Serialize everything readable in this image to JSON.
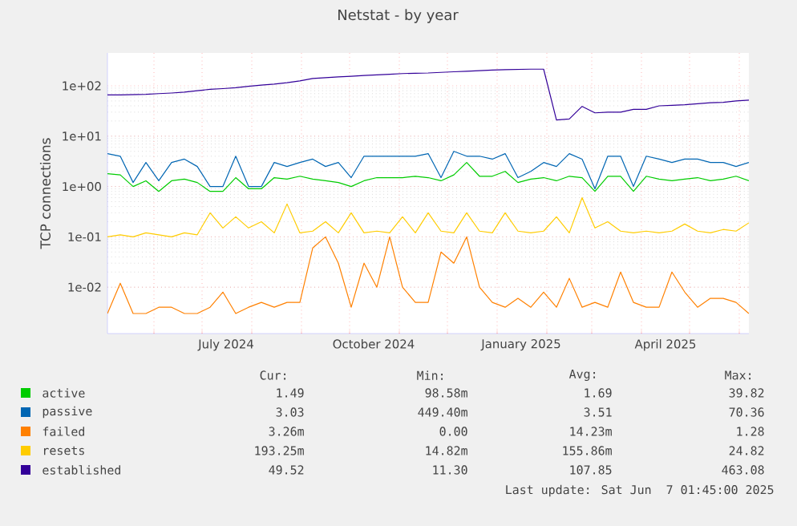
{
  "chart_data": {
    "type": "line",
    "title": "Netstat - by year",
    "ylabel": "TCP connections",
    "log": "y",
    "grid": true,
    "legend": "bottom",
    "line_style": "solid",
    "marker": "none",
    "xlim": [
      "2024-05-03",
      "2025-06-07"
    ],
    "xticks": [
      {
        "value": "2024-06-01",
        "label": null
      },
      {
        "value": "2024-07-01",
        "label": null
      },
      {
        "value": "2024-07-16",
        "label": "July 2024"
      },
      {
        "value": "2024-08-01",
        "label": null
      },
      {
        "value": "2024-09-01",
        "label": null
      },
      {
        "value": "2024-10-01",
        "label": null
      },
      {
        "value": "2024-10-16",
        "label": "October 2024"
      },
      {
        "value": "2024-11-01",
        "label": null
      },
      {
        "value": "2024-12-01",
        "label": null
      },
      {
        "value": "2025-01-01",
        "label": null
      },
      {
        "value": "2025-01-16",
        "label": "January 2025"
      },
      {
        "value": "2025-02-01",
        "label": null
      },
      {
        "value": "2025-03-01",
        "label": null
      },
      {
        "value": "2025-04-01",
        "label": null
      },
      {
        "value": "2025-04-16",
        "label": "April 2025"
      },
      {
        "value": "2025-05-01",
        "label": null
      },
      {
        "value": "2025-06-01",
        "label": null
      }
    ],
    "ylim": [
      0.0012,
      450
    ],
    "yticks": [
      {
        "value": 0.01,
        "label": "1e-02"
      },
      {
        "value": 0.1,
        "label": "1e-01"
      },
      {
        "value": 1,
        "label": "1e+00"
      },
      {
        "value": 10,
        "label": "1e+01"
      },
      {
        "value": 100,
        "label": "1e+02"
      }
    ],
    "x": [
      "2024-05-03",
      "2024-05-11",
      "2024-05-19",
      "2024-05-27",
      "2024-06-04",
      "2024-06-12",
      "2024-06-20",
      "2024-06-28",
      "2024-07-06",
      "2024-07-14",
      "2024-07-22",
      "2024-07-30",
      "2024-08-07",
      "2024-08-15",
      "2024-08-23",
      "2024-08-31",
      "2024-09-08",
      "2024-09-16",
      "2024-09-24",
      "2024-10-02",
      "2024-10-10",
      "2024-10-18",
      "2024-10-26",
      "2024-11-03",
      "2024-11-11",
      "2024-11-19",
      "2024-11-27",
      "2024-12-05",
      "2024-12-13",
      "2024-12-21",
      "2024-12-29",
      "2025-01-06",
      "2025-01-14",
      "2025-01-22",
      "2025-01-30",
      "2025-02-07",
      "2025-02-15",
      "2025-02-23",
      "2025-03-03",
      "2025-03-11",
      "2025-03-19",
      "2025-03-27",
      "2025-04-04",
      "2025-04-12",
      "2025-04-20",
      "2025-04-28",
      "2025-05-06",
      "2025-05-14",
      "2025-05-22",
      "2025-05-30",
      "2025-06-07"
    ],
    "series": [
      {
        "name": "active",
        "color": "#00cc00",
        "values": [
          1.8,
          1.7,
          1.0,
          1.3,
          0.8,
          1.3,
          1.4,
          1.2,
          0.8,
          0.8,
          1.5,
          0.9,
          0.9,
          1.5,
          1.4,
          1.6,
          1.4,
          1.3,
          1.2,
          1.0,
          1.3,
          1.5,
          1.5,
          1.5,
          1.6,
          1.5,
          1.3,
          1.7,
          3,
          1.6,
          1.6,
          2,
          1.2,
          1.4,
          1.5,
          1.3,
          1.6,
          1.5,
          0.8,
          1.6,
          1.6,
          0.8,
          1.6,
          1.4,
          1.3,
          1.4,
          1.5,
          1.3,
          1.4,
          1.6,
          1.3
        ]
      },
      {
        "name": "passive",
        "color": "#0066b3",
        "values": [
          4.5,
          4,
          1.2,
          3,
          1.3,
          3,
          3.5,
          2.5,
          1,
          1,
          4,
          1,
          1,
          3,
          2.5,
          3,
          3.5,
          2.5,
          3,
          1.5,
          4,
          4,
          4,
          4,
          4,
          4.5,
          1.5,
          5,
          4,
          4,
          3.5,
          4.5,
          1.5,
          2,
          3,
          2.5,
          4.5,
          3.5,
          0.9,
          4,
          4,
          1,
          4,
          3.5,
          3,
          3.5,
          3.5,
          3,
          3,
          2.5,
          3
        ]
      },
      {
        "name": "failed",
        "color": "#ff8000",
        "values": [
          0.003,
          0.012,
          0.003,
          0.003,
          0.004,
          0.004,
          0.003,
          0.003,
          0.004,
          0.008,
          0.003,
          0.004,
          0.005,
          0.004,
          0.005,
          0.005,
          0.06,
          0.1,
          0.03,
          0.004,
          0.03,
          0.01,
          0.1,
          0.01,
          0.005,
          0.005,
          0.05,
          0.03,
          0.1,
          0.01,
          0.005,
          0.004,
          0.006,
          0.004,
          0.008,
          0.004,
          0.015,
          0.004,
          0.005,
          0.004,
          0.02,
          0.005,
          0.004,
          0.004,
          0.02,
          0.008,
          0.004,
          0.006,
          0.006,
          0.005,
          0.003
        ]
      },
      {
        "name": "resets",
        "color": "#ffcc00",
        "values": [
          0.1,
          0.11,
          0.1,
          0.12,
          0.11,
          0.1,
          0.12,
          0.11,
          0.3,
          0.15,
          0.25,
          0.15,
          0.2,
          0.12,
          0.45,
          0.12,
          0.13,
          0.2,
          0.12,
          0.3,
          0.12,
          0.13,
          0.12,
          0.25,
          0.12,
          0.3,
          0.13,
          0.12,
          0.3,
          0.13,
          0.12,
          0.3,
          0.13,
          0.12,
          0.13,
          0.25,
          0.12,
          0.6,
          0.15,
          0.2,
          0.13,
          0.12,
          0.13,
          0.12,
          0.13,
          0.18,
          0.13,
          0.12,
          0.14,
          0.13,
          0.19
        ]
      },
      {
        "name": "established",
        "color": "#330099",
        "values": [
          66,
          66,
          67,
          68,
          70,
          72,
          75,
          80,
          85,
          88,
          92,
          98,
          103,
          108,
          115,
          125,
          140,
          145,
          150,
          155,
          160,
          165,
          170,
          175,
          178,
          180,
          185,
          190,
          195,
          200,
          205,
          210,
          212,
          214,
          214,
          21,
          22,
          39,
          29,
          30,
          30,
          34,
          34,
          40,
          41,
          42,
          44,
          46,
          47,
          50,
          52
        ]
      }
    ],
    "annotations": [
      "Cur:",
      "Min:",
      "Avg:",
      "Max:",
      "1.49",
      "98.58m",
      "1.69",
      "39.82",
      "3.03",
      "449.40m",
      "3.51",
      "70.36",
      "3.26m",
      "0.00",
      "14.23m",
      "1.28",
      "193.25m",
      "14.82m",
      "155.86m",
      "24.82",
      "49.52",
      "11.30",
      "107.85",
      "463.08",
      "Last update: Sat Jun  7 01:45:00 2025"
    ]
  }
}
